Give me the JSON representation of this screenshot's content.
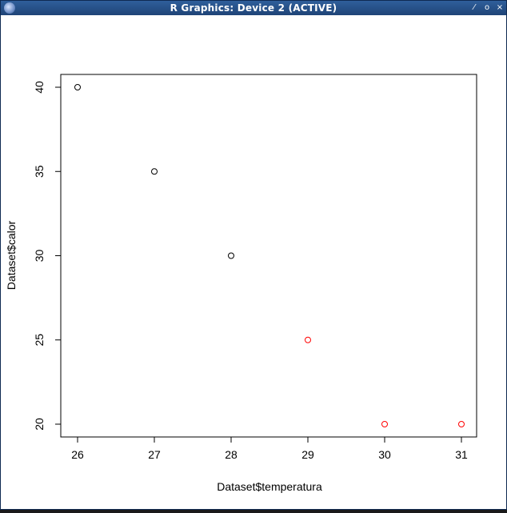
{
  "window": {
    "title": "R Graphics: Device 2 (ACTIVE)",
    "app_icon": "r-logo-icon",
    "controls": [
      {
        "name": "minimize",
        "glyph": "⁄"
      },
      {
        "name": "maximize",
        "glyph": "o"
      },
      {
        "name": "close",
        "glyph": "×"
      }
    ]
  },
  "chart_data": {
    "type": "scatter",
    "title": "",
    "xlabel": "Dataset$temperatura",
    "ylabel": "Dataset$calor",
    "xlim": [
      26,
      31
    ],
    "ylim": [
      20,
      40
    ],
    "xticks": [
      26,
      27,
      28,
      29,
      30,
      31
    ],
    "yticks": [
      20,
      25,
      30,
      35,
      40
    ],
    "grid": false,
    "marker": "open-circle",
    "points": [
      {
        "x": 26,
        "y": 40,
        "color": "#000000"
      },
      {
        "x": 27,
        "y": 35,
        "color": "#000000"
      },
      {
        "x": 28,
        "y": 30,
        "color": "#000000"
      },
      {
        "x": 29,
        "y": 25,
        "color": "#ff0000"
      },
      {
        "x": 30,
        "y": 20,
        "color": "#ff0000"
      },
      {
        "x": 31,
        "y": 20,
        "color": "#ff0000"
      }
    ]
  }
}
